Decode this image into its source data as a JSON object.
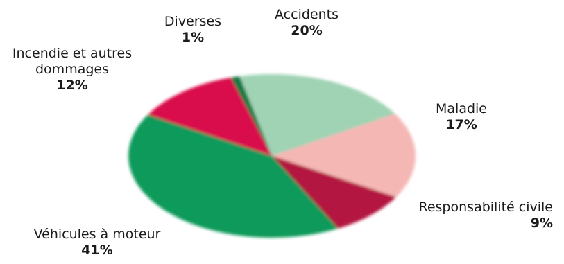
{
  "chart_data": {
    "type": "pie",
    "title": "",
    "slices": [
      {
        "label": "Accidents",
        "value": 20,
        "display": "20%",
        "color": "#9fd3b4"
      },
      {
        "label": "Maladie",
        "value": 17,
        "display": "17%",
        "color": "#f4b7b4"
      },
      {
        "label": "Responsabilité civile",
        "value": 9,
        "display": "9%",
        "color": "#b3123f"
      },
      {
        "label": "Véhicules à moteur",
        "value": 41,
        "display": "41%",
        "color": "#0e9a5a"
      },
      {
        "label": "Incendie et autres dommages",
        "value": 12,
        "display": "12%",
        "color": "#d90f4c"
      },
      {
        "label": "Diverses",
        "value": 1,
        "display": "1%",
        "color": "#0d7a45"
      }
    ],
    "label_lines": {
      "incendie_line1": "Incendie et autres",
      "incendie_line2": "dommages"
    }
  }
}
